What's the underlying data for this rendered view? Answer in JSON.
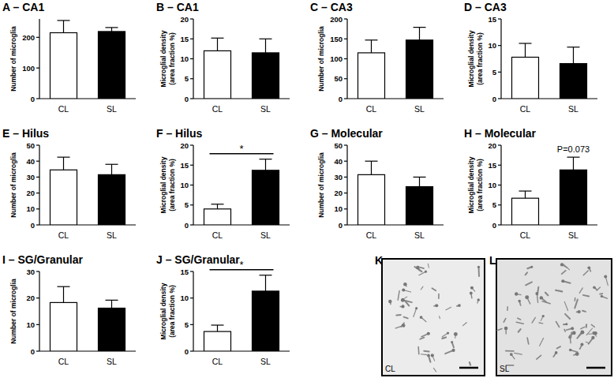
{
  "chart_data": [
    {
      "type": "bar",
      "title": "A – CA1",
      "y_label": [
        "Number of microglia"
      ],
      "categories": [
        "CL",
        "SL"
      ],
      "values": [
        215,
        219
      ],
      "errors": [
        40,
        13
      ],
      "colors": [
        "#ffffff",
        "#000000"
      ],
      "ylim": [
        0,
        260
      ],
      "yticks": [
        0,
        100,
        200
      ]
    },
    {
      "type": "bar",
      "title": "B – CA1",
      "y_label": [
        "Microglial density",
        "(area fraction %)"
      ],
      "categories": [
        "CL",
        "SL"
      ],
      "values": [
        12,
        11.5
      ],
      "errors": [
        3.2,
        3.5
      ],
      "colors": [
        "#ffffff",
        "#000000"
      ],
      "ylim": [
        0,
        20
      ],
      "yticks": [
        0,
        5,
        10,
        15,
        20
      ]
    },
    {
      "type": "bar",
      "title": "C – CA3",
      "y_label": [
        "Number of microglia"
      ],
      "categories": [
        "CL",
        "SL"
      ],
      "values": [
        115,
        147
      ],
      "errors": [
        32,
        32
      ],
      "colors": [
        "#ffffff",
        "#000000"
      ],
      "ylim": [
        0,
        200
      ],
      "yticks": [
        0,
        50,
        100,
        150,
        200
      ]
    },
    {
      "type": "bar",
      "title": "D – CA3",
      "y_label": [
        "Microglial density",
        "(area fraction %)"
      ],
      "categories": [
        "CL",
        "SL"
      ],
      "values": [
        7.8,
        6.6
      ],
      "errors": [
        2.6,
        3.1
      ],
      "colors": [
        "#ffffff",
        "#000000"
      ],
      "ylim": [
        0,
        15
      ],
      "yticks": [
        0,
        5,
        10,
        15
      ]
    },
    {
      "type": "bar",
      "title": "E – Hilus",
      "y_label": [
        "Number of microglia"
      ],
      "categories": [
        "CL",
        "SL"
      ],
      "values": [
        34.5,
        31.5
      ],
      "errors": [
        8,
        6.5
      ],
      "colors": [
        "#ffffff",
        "#000000"
      ],
      "ylim": [
        0,
        50
      ],
      "yticks": [
        0,
        10,
        20,
        30,
        40,
        50
      ]
    },
    {
      "type": "bar",
      "title": "F – Hilus",
      "y_label": [
        "Microglial density",
        "(area fraction %)"
      ],
      "categories": [
        "CL",
        "SL"
      ],
      "values": [
        4,
        13.7
      ],
      "errors": [
        1.2,
        2.8
      ],
      "colors": [
        "#ffffff",
        "#000000"
      ],
      "ylim": [
        0,
        20
      ],
      "yticks": [
        0,
        5,
        10,
        15,
        20
      ],
      "annotations": [
        {
          "text": "*",
          "between": [
            0,
            1
          ]
        }
      ]
    },
    {
      "type": "bar",
      "title": "G – Molecular",
      "y_label": [
        "Number of microglia"
      ],
      "categories": [
        "CL",
        "SL"
      ],
      "values": [
        31.5,
        24
      ],
      "errors": [
        8.5,
        6
      ],
      "colors": [
        "#ffffff",
        "#000000"
      ],
      "ylim": [
        0,
        50
      ],
      "yticks": [
        0,
        10,
        20,
        30,
        40,
        50
      ]
    },
    {
      "type": "bar",
      "title": "H – Molecular",
      "y_label": [
        "Microglial density",
        "(area fraction %)"
      ],
      "categories": [
        "CL",
        "SL"
      ],
      "values": [
        6.7,
        13.8
      ],
      "errors": [
        1.8,
        3.2
      ],
      "colors": [
        "#ffffff",
        "#000000"
      ],
      "ylim": [
        0,
        20
      ],
      "yticks": [
        0,
        5,
        10,
        15,
        20
      ],
      "annotations": [
        {
          "text": "P=0.073",
          "over": 1
        }
      ]
    },
    {
      "type": "bar",
      "title": "I – SG/Granular",
      "y_label": [
        "Number of microglia"
      ],
      "categories": [
        "CL",
        "SL"
      ],
      "values": [
        18.3,
        16.2
      ],
      "errors": [
        6,
        3
      ],
      "colors": [
        "#ffffff",
        "#000000"
      ],
      "ylim": [
        0,
        30
      ],
      "yticks": [
        0,
        10,
        20,
        30
      ]
    },
    {
      "type": "bar",
      "title": "J – SG/Granular",
      "y_label": [
        "Microglial density",
        "(area fraction %)"
      ],
      "categories": [
        "CL",
        "SL"
      ],
      "values": [
        3.7,
        11.3
      ],
      "errors": [
        1.2,
        3
      ],
      "colors": [
        "#ffffff",
        "#000000"
      ],
      "ylim": [
        0,
        15
      ],
      "yticks": [
        0,
        5,
        10,
        15
      ],
      "annotations": [
        {
          "text": "*",
          "between": [
            0,
            1
          ]
        }
      ]
    }
  ],
  "images": [
    {
      "panel": "K",
      "caption": "CL"
    },
    {
      "panel": "L",
      "caption": "SL"
    }
  ]
}
